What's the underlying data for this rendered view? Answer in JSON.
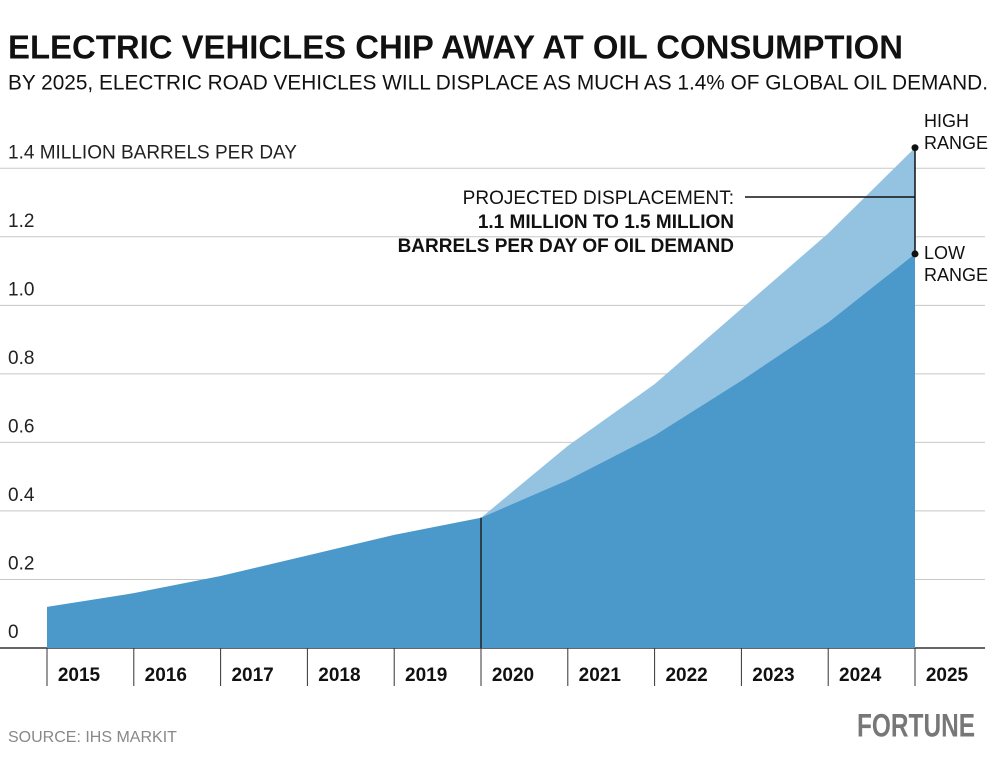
{
  "chart_data": {
    "type": "area",
    "title": "ELECTRIC VEHICLES CHIP AWAY AT OIL CONSUMPTION",
    "subtitle": "BY 2025, ELECTRIC ROAD VEHICLES WILL DISPLACE AS MUCH AS 1.4% OF GLOBAL OIL DEMAND.",
    "x": [
      2015,
      2016,
      2017,
      2018,
      2019,
      2020,
      2021,
      2022,
      2023,
      2024,
      2025
    ],
    "xlim": [
      2015,
      2025
    ],
    "ylim": [
      0,
      1.5
    ],
    "yticks": [
      0,
      0.2,
      0.4,
      0.6,
      0.8,
      {
        "value": 1,
        "label": "1.0"
      },
      1.2,
      {
        "value": 1.4,
        "label": "1.4 MILLION BARRELS PER DAY"
      }
    ],
    "grid": true,
    "series": [
      {
        "name": "HIGH RANGE",
        "color": "#94c3e1",
        "values": [
          null,
          null,
          null,
          null,
          null,
          0.38,
          0.59,
          0.77,
          0.99,
          1.21,
          1.46
        ]
      },
      {
        "name": "LOW RANGE",
        "color": "#4b99ca",
        "values": [
          0.12,
          0.16,
          0.21,
          0.27,
          0.33,
          0.38,
          0.49,
          0.62,
          0.78,
          0.95,
          1.15
        ]
      }
    ],
    "annotation": [
      "PROJECTED DISPLACEMENT:",
      "1.1 MILLION TO 1.5 MILLION",
      "BARRELS PER DAY OF OIL DEMAND"
    ],
    "source": "SOURCE: IHS MARKIT",
    "logo": "FORTUNE"
  }
}
